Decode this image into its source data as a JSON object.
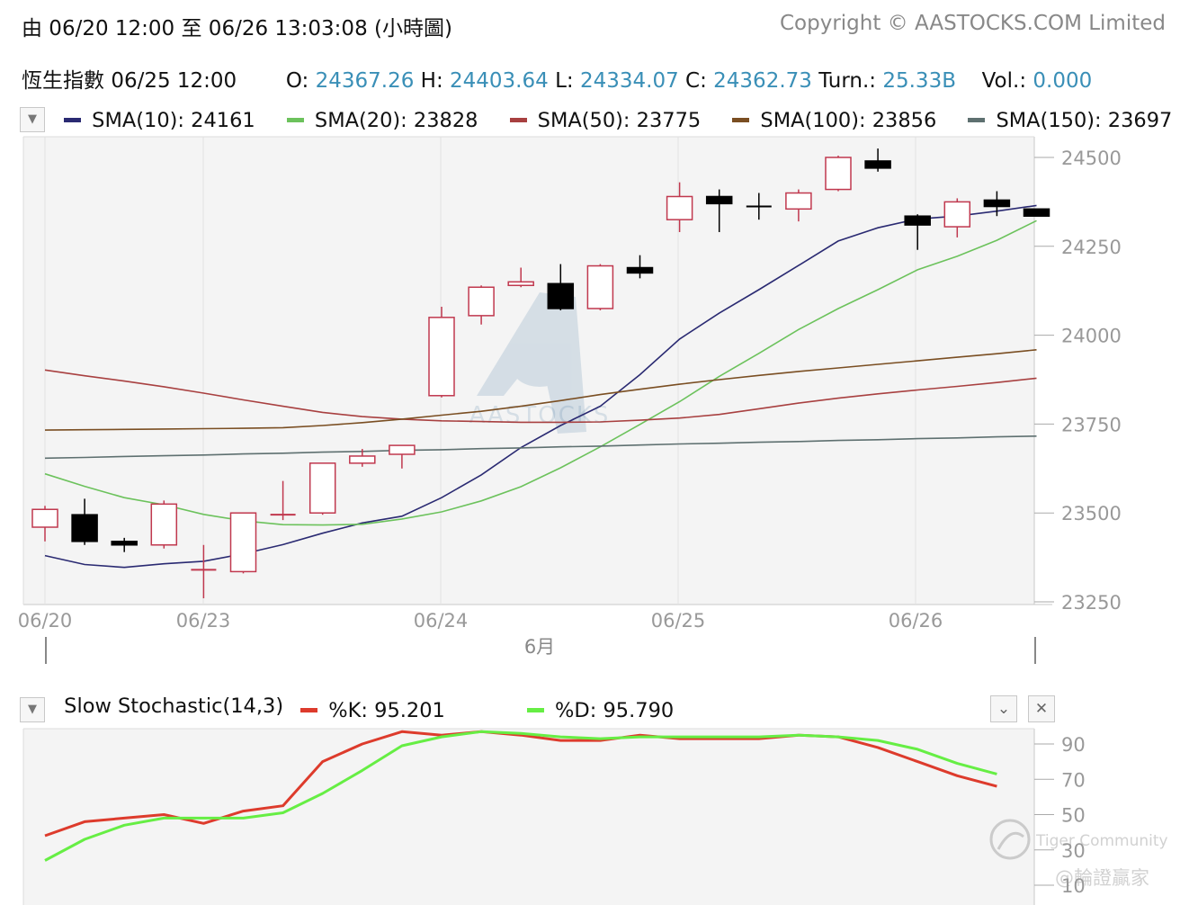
{
  "header": {
    "range_text": "由  06/20 12:00 至  06/26 13:03:08 (小時圖)",
    "copyright": "Copyright © AASTOCKS.COM Limited"
  },
  "quote": {
    "name": "恆生指數",
    "time": "06/25 12:00",
    "open_label": "O:",
    "open": "24367.26",
    "high_label": "H:",
    "high": "24403.64",
    "low_label": "L:",
    "low": "24334.07",
    "close_label": "C:",
    "close": "24362.73",
    "turnover_label": "Turn.:",
    "turnover": "25.33B",
    "volume_label": "Vol.:",
    "volume": "0.000"
  },
  "colors": {
    "up_candle": "#c0384e",
    "down_candle": "#000000",
    "sma10": "#2a2a72",
    "sma20": "#6cc25c",
    "sma50": "#a84040",
    "sma100": "#7a4e22",
    "sma150": "#5e7070",
    "k_line": "#dd3b2c",
    "d_line": "#66ee44"
  },
  "watermarks": {
    "center": "AASTOCKS",
    "community": "Tiger Community",
    "handle": "@輪證贏家"
  },
  "chart_data": [
    {
      "type": "candlestick",
      "ylim": [
        23250,
        24500
      ],
      "yticks": [
        "24500",
        "24250",
        "24000",
        "23750",
        "23500",
        "23250"
      ],
      "xticks": [
        "06/20",
        "06/23",
        "06/24",
        "06/25",
        "06/26"
      ],
      "month_label": "6月",
      "candles": [
        {
          "o": 23460,
          "h": 23520,
          "l": 23420,
          "c": 23510
        },
        {
          "o": 23495,
          "h": 23540,
          "l": 23410,
          "c": 23420
        },
        {
          "o": 23420,
          "h": 23430,
          "l": 23390,
          "c": 23410
        },
        {
          "o": 23410,
          "h": 23535,
          "l": 23400,
          "c": 23525
        },
        {
          "o": 23340,
          "h": 23410,
          "l": 23260,
          "c": 23340
        },
        {
          "o": 23335,
          "h": 23500,
          "l": 23330,
          "c": 23500
        },
        {
          "o": 23495,
          "h": 23590,
          "l": 23480,
          "c": 23495
        },
        {
          "o": 23500,
          "h": 23640,
          "l": 23495,
          "c": 23640
        },
        {
          "o": 23640,
          "h": 23680,
          "l": 23630,
          "c": 23660
        },
        {
          "o": 23665,
          "h": 23690,
          "l": 23625,
          "c": 23690
        },
        {
          "o": 23830,
          "h": 24080,
          "l": 23825,
          "c": 24050
        },
        {
          "o": 24055,
          "h": 24140,
          "l": 24030,
          "c": 24135
        },
        {
          "o": 24140,
          "h": 24190,
          "l": 24135,
          "c": 24150
        },
        {
          "o": 24145,
          "h": 24200,
          "l": 24070,
          "c": 24075
        },
        {
          "o": 24075,
          "h": 24200,
          "l": 24070,
          "c": 24195
        },
        {
          "o": 24190,
          "h": 24225,
          "l": 24160,
          "c": 24175
        },
        {
          "o": 24325,
          "h": 24430,
          "l": 24290,
          "c": 24390
        },
        {
          "o": 24390,
          "h": 24410,
          "l": 24290,
          "c": 24370
        },
        {
          "o": 24362,
          "h": 24400,
          "l": 24325,
          "c": 24360
        },
        {
          "o": 24355,
          "h": 24410,
          "l": 24320,
          "c": 24400
        },
        {
          "o": 24410,
          "h": 24505,
          "l": 24405,
          "c": 24500
        },
        {
          "o": 24490,
          "h": 24525,
          "l": 24460,
          "c": 24470
        },
        {
          "o": 24335,
          "h": 24340,
          "l": 24240,
          "c": 24310
        },
        {
          "o": 24305,
          "h": 24385,
          "l": 24275,
          "c": 24375
        },
        {
          "o": 24380,
          "h": 24405,
          "l": 24335,
          "c": 24362
        },
        {
          "o": 24355,
          "h": 24355,
          "l": 24335,
          "c": 24335
        }
      ],
      "series": [
        {
          "name": "SMA(10): 24161",
          "key": "sma10",
          "values": [
            23380,
            23355,
            23347,
            23357,
            23364,
            23385,
            23411,
            23443,
            23472,
            23491,
            23543,
            23607,
            23684,
            23746,
            23800,
            23889,
            23989,
            24062,
            24128,
            24196,
            24265,
            24302,
            24327,
            24335,
            24349,
            24365
          ]
        },
        {
          "name": "SMA(20): 23828",
          "key": "sma20",
          "values": [
            23610,
            23575,
            23543,
            23523,
            23496,
            23478,
            23467,
            23466,
            23468,
            23483,
            23503,
            23534,
            23574,
            23627,
            23686,
            23749,
            23813,
            23884,
            23949,
            24016,
            24075,
            24128,
            24184,
            24222,
            24267,
            24322
          ]
        },
        {
          "name": "SMA(50): 23775",
          "key": "sma50",
          "values": [
            23902,
            23886,
            23871,
            23855,
            23837,
            23818,
            23800,
            23783,
            23771,
            23764,
            23759,
            23757,
            23755,
            23755,
            23756,
            23761,
            23767,
            23777,
            23793,
            23809,
            23823,
            23835,
            23846,
            23856,
            23867,
            23879
          ]
        },
        {
          "name": "SMA(100): 23856",
          "key": "sma100",
          "values": [
            23733,
            23734,
            23735,
            23736,
            23737,
            23738,
            23740,
            23746,
            23754,
            23764,
            23775,
            23786,
            23800,
            23816,
            23833,
            23848,
            23862,
            23875,
            23887,
            23898,
            23908,
            23918,
            23928,
            23938,
            23948,
            23959
          ]
        },
        {
          "name": "SMA(150): 23697",
          "key": "sma150",
          "values": [
            23654,
            23656,
            23659,
            23661,
            23663,
            23666,
            23668,
            23671,
            23673,
            23676,
            23678,
            23681,
            23683,
            23686,
            23688,
            23691,
            23694,
            23696,
            23699,
            23701,
            23704,
            23706,
            23709,
            23711,
            23714,
            23716
          ]
        }
      ]
    },
    {
      "type": "line",
      "title": "Slow Stochastic(14,3)",
      "yticks": [
        "90",
        "70",
        "50",
        "30",
        "10"
      ],
      "series": [
        {
          "name": "%K: 95.201",
          "key": "k_line",
          "values": [
            38,
            46,
            48,
            50,
            45,
            52,
            55,
            80,
            90,
            97,
            95,
            97,
            95,
            92,
            92,
            95,
            93,
            93,
            93,
            95,
            94,
            88,
            80,
            72,
            66
          ]
        },
        {
          "name": "%D: 95.790",
          "key": "d_line",
          "values": [
            24,
            36,
            44,
            48,
            48,
            48,
            51,
            62,
            75,
            89,
            94,
            97,
            96,
            94,
            93,
            94,
            94,
            94,
            94,
            95,
            94,
            92,
            87,
            79,
            73
          ]
        }
      ]
    }
  ]
}
